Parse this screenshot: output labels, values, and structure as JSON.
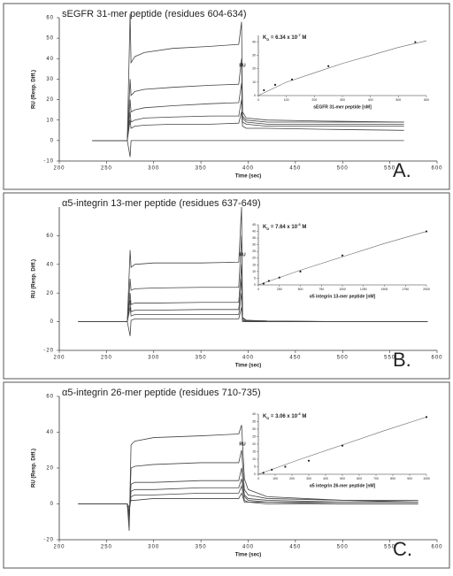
{
  "chart_data": [
    {
      "type": "line",
      "title": "sEGFR 31-mer peptide (residues 604-634)",
      "panel_label": "A.",
      "x_label": "Time (sec)",
      "y_label": "RU (Resp. Diff.)",
      "color": "#444",
      "xlim": [
        200,
        600
      ],
      "xticks": [
        200,
        250,
        300,
        350,
        400,
        450,
        500,
        550,
        600
      ],
      "ylim": [
        -10,
        60
      ],
      "yticks": [
        -10,
        0,
        10,
        20,
        30,
        40,
        50,
        60
      ],
      "x": [
        235,
        272,
        275,
        276,
        280,
        290,
        320,
        360,
        390,
        393,
        394,
        398,
        420,
        480,
        565
      ],
      "series": [
        {
          "values": [
            0,
            0,
            62,
            38,
            41,
            43,
            45,
            46,
            47,
            58,
            14,
            11,
            10,
            9.5,
            9
          ]
        },
        {
          "values": [
            0,
            0,
            30,
            22,
            24,
            25,
            26,
            27,
            27.5,
            40,
            12,
            10,
            9,
            9,
            9
          ]
        },
        {
          "values": [
            0,
            0,
            20,
            14,
            15,
            16,
            17,
            18,
            18.5,
            28,
            11,
            9,
            8,
            8,
            8
          ]
        },
        {
          "values": [
            0,
            0,
            14,
            9,
            10,
            11,
            11.5,
            12,
            12,
            20,
            9,
            8,
            7,
            7,
            7
          ]
        },
        {
          "values": [
            0,
            0,
            10,
            6,
            7,
            7.5,
            8,
            8,
            8.5,
            14,
            7,
            6,
            6,
            5.5,
            5
          ]
        },
        {
          "values": [
            0,
            0,
            -8,
            0,
            0,
            0,
            0,
            0,
            0,
            0,
            0,
            0,
            0,
            0,
            0
          ]
        }
      ],
      "inset": {
        "type": "scatter",
        "kd": [
          "K",
          "D",
          " = 6.34 x 10",
          "-7",
          " M"
        ],
        "x_label": "sEGFR 31-mer peptide [nM]",
        "y_label": "RU",
        "xlim": [
          0,
          600
        ],
        "xticks": [
          0,
          100,
          200,
          300,
          400,
          500,
          600
        ],
        "ylim": [
          0,
          45
        ],
        "yticks": [
          0,
          10,
          20,
          30,
          40
        ],
        "x": [
          20,
          60,
          120,
          250,
          560
        ],
        "values": [
          4,
          8,
          12,
          22,
          40
        ],
        "fit_x": [
          0,
          100,
          200,
          300,
          400,
          500,
          600
        ],
        "fit_values": [
          0,
          10,
          17,
          24,
          30,
          36,
          41
        ]
      }
    },
    {
      "type": "line",
      "title": "α5-integrin 13-mer peptide (residues 637-649)",
      "panel_label": "B.",
      "x_label": "Time (sec)",
      "y_label": "RU (Resp. Diff.)",
      "color": "#444",
      "xlim": [
        200,
        600
      ],
      "xticks": [
        200,
        250,
        300,
        350,
        400,
        450,
        500,
        550,
        600
      ],
      "ylim": [
        -20,
        80
      ],
      "yticks": [
        -20,
        0,
        20,
        40,
        60
      ],
      "x": [
        220,
        272,
        275,
        276,
        280,
        300,
        350,
        390,
        393,
        394,
        398,
        420,
        500,
        590
      ],
      "series": [
        {
          "values": [
            0,
            0,
            50,
            38,
            40,
            41,
            41,
            41.5,
            80,
            3,
            1,
            0.5,
            0,
            0
          ]
        },
        {
          "values": [
            0,
            0,
            30,
            22,
            23,
            23.5,
            24,
            24,
            60,
            2,
            1,
            0.5,
            0,
            0
          ]
        },
        {
          "values": [
            0,
            0,
            20,
            12,
            13,
            13,
            13.5,
            13.5,
            40,
            2,
            1,
            0,
            0,
            0
          ]
        },
        {
          "values": [
            0,
            0,
            15,
            7,
            8,
            8,
            8.5,
            8.5,
            30,
            1,
            0.5,
            0,
            0,
            0
          ]
        },
        {
          "values": [
            0,
            0,
            10,
            4,
            5,
            5,
            5,
            5,
            20,
            1,
            0,
            0,
            0,
            0
          ]
        },
        {
          "values": [
            0,
            0,
            -10,
            1,
            2,
            2,
            2,
            2,
            10,
            0,
            0,
            0,
            0,
            0
          ]
        }
      ],
      "inset": {
        "type": "scatter",
        "kd": [
          "K",
          "D",
          " = 7.64 x 10",
          "-6",
          " M"
        ],
        "x_label": "α5 integrin 13-mer peptide [nM]",
        "y_label": "RU",
        "xlim": [
          0,
          2000
        ],
        "xticks": [
          0,
          250,
          500,
          750,
          1000,
          1250,
          1500,
          1750,
          2000
        ],
        "ylim": [
          0,
          45
        ],
        "yticks": [
          0,
          5,
          10,
          15,
          20,
          25,
          30,
          35,
          40,
          45
        ],
        "x": [
          62.5,
          125,
          250,
          500,
          1000,
          2000
        ],
        "values": [
          1,
          3,
          5.5,
          10,
          22,
          40
        ],
        "fit_x": [
          0,
          500,
          1000,
          1500,
          2000
        ],
        "fit_values": [
          0,
          11,
          21,
          31,
          40
        ]
      }
    },
    {
      "type": "line",
      "title": "α5-integrin 26-mer peptide (residues 710-735)",
      "panel_label": "C.",
      "x_label": "Time (sec)",
      "y_label": "RU (Resp. Diff.)",
      "color": "#444",
      "xlim": [
        200,
        600
      ],
      "xticks": [
        200,
        250,
        300,
        350,
        400,
        450,
        500,
        550,
        600
      ],
      "ylim": [
        -20,
        60
      ],
      "yticks": [
        -20,
        0,
        20,
        40,
        60
      ],
      "x": [
        220,
        272,
        274,
        276,
        280,
        300,
        350,
        390,
        393,
        396,
        400,
        420,
        500,
        580
      ],
      "series": [
        {
          "values": [
            0,
            0,
            -15,
            33,
            35,
            37,
            38,
            39,
            44,
            14,
            8,
            4,
            2,
            2
          ]
        },
        {
          "values": [
            0,
            0,
            -10,
            20,
            21,
            22,
            23,
            23,
            30,
            8,
            5,
            3,
            2,
            1
          ]
        },
        {
          "values": [
            0,
            0,
            -8,
            11,
            12,
            12,
            13,
            13,
            20,
            5,
            3,
            2,
            1,
            1
          ]
        },
        {
          "values": [
            0,
            0,
            -6,
            7,
            8,
            8,
            9,
            9,
            14,
            4,
            2,
            1,
            1,
            1
          ]
        },
        {
          "values": [
            0,
            0,
            -4,
            4,
            5,
            5,
            6,
            6,
            10,
            2,
            1,
            1,
            0,
            0
          ]
        },
        {
          "values": [
            0,
            0,
            -2,
            2,
            2,
            3,
            3,
            3,
            6,
            1,
            1,
            0,
            0,
            0
          ]
        }
      ],
      "inset": {
        "type": "scatter",
        "kd": [
          "K",
          "D",
          " = 3.06 x 10",
          "-6",
          " M"
        ],
        "x_label": "α5 integrin 26-mer peptide [nM]",
        "y_label": "RU",
        "xlim": [
          0,
          1000
        ],
        "xticks": [
          0,
          100,
          200,
          300,
          400,
          500,
          600,
          700,
          800,
          900,
          1000
        ],
        "ylim": [
          0,
          40
        ],
        "yticks": [
          0,
          5,
          10,
          15,
          20,
          25,
          30,
          35,
          40
        ],
        "x": [
          30,
          80,
          160,
          300,
          500,
          1000
        ],
        "values": [
          1,
          3,
          5,
          9,
          19,
          38
        ],
        "fit_x": [
          0,
          250,
          500,
          750,
          1000
        ],
        "fit_values": [
          0,
          10,
          19.5,
          29,
          38
        ]
      }
    }
  ]
}
